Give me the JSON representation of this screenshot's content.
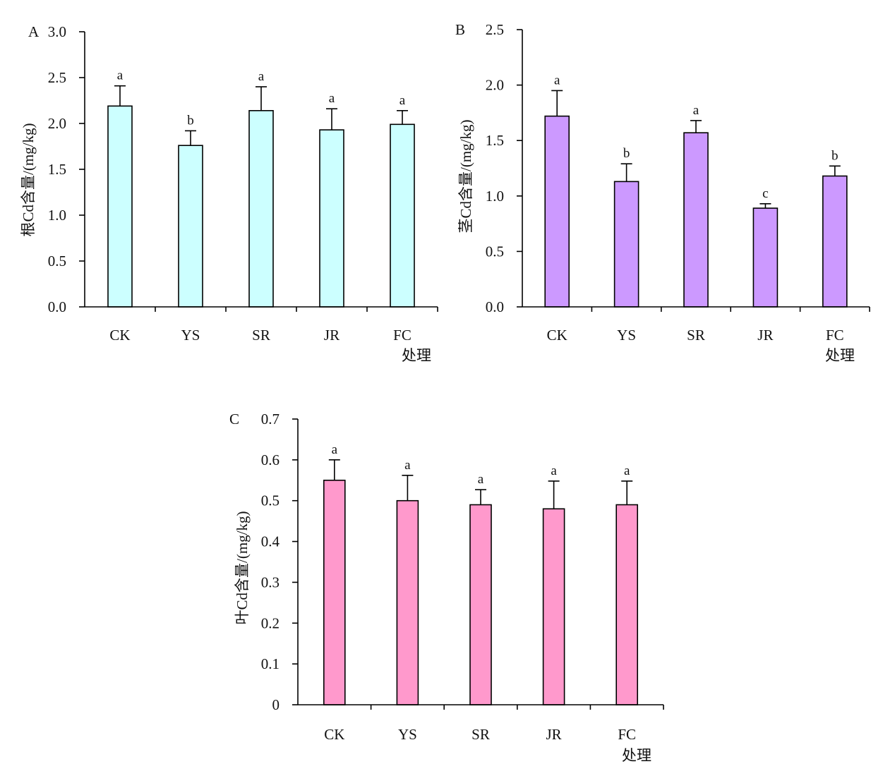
{
  "chart_data": [
    {
      "type": "bar",
      "panel": "A",
      "categories": [
        "CK",
        "YS",
        "SR",
        "JR",
        "FC"
      ],
      "values": [
        2.19,
        1.76,
        2.14,
        1.93,
        1.99
      ],
      "errors": [
        0.22,
        0.16,
        0.26,
        0.23,
        0.15
      ],
      "significance": [
        "a",
        "b",
        "a",
        "a",
        "a"
      ],
      "ylabel": "根Cd含量/(mg/kg)",
      "xlabel": "处理",
      "ylim": [
        0,
        3.0
      ],
      "yticks": [
        0.0,
        0.5,
        1.0,
        1.5,
        2.0,
        2.5,
        3.0
      ],
      "ytick_labels": [
        "0.0",
        "0.5",
        "1.0",
        "1.5",
        "2.0",
        "2.5",
        "3.0"
      ],
      "bar_color": "#ccffff",
      "grid": false
    },
    {
      "type": "bar",
      "panel": "B",
      "categories": [
        "CK",
        "YS",
        "SR",
        "JR",
        "FC"
      ],
      "values": [
        1.72,
        1.13,
        1.57,
        0.89,
        1.18
      ],
      "errors": [
        0.23,
        0.16,
        0.11,
        0.04,
        0.09
      ],
      "significance": [
        "a",
        "b",
        "a",
        "c",
        "b"
      ],
      "ylabel": "茎Cd含量/(mg/kg)",
      "xlabel": "处理",
      "ylim": [
        0,
        2.5
      ],
      "yticks": [
        0.0,
        0.5,
        1.0,
        1.5,
        2.0,
        2.5
      ],
      "ytick_labels": [
        "0.0",
        "0.5",
        "1.0",
        "1.5",
        "2.0",
        "2.5"
      ],
      "bar_color": "#cc99ff",
      "grid": false
    },
    {
      "type": "bar",
      "panel": "C",
      "categories": [
        "CK",
        "YS",
        "SR",
        "JR",
        "FC"
      ],
      "values": [
        0.55,
        0.5,
        0.49,
        0.48,
        0.49
      ],
      "errors": [
        0.05,
        0.062,
        0.037,
        0.068,
        0.058
      ],
      "significance": [
        "a",
        "a",
        "a",
        "a",
        "a"
      ],
      "ylabel": "叶Cd含量/(mg/kg)",
      "xlabel": "处理",
      "ylim": [
        0,
        0.7
      ],
      "yticks": [
        0,
        0.1,
        0.2,
        0.3,
        0.4,
        0.5,
        0.6,
        0.7
      ],
      "ytick_labels": [
        "0",
        "0.1",
        "0.2",
        "0.3",
        "0.4",
        "0.5",
        "0.6",
        "0.7"
      ],
      "bar_color": "#ff99cc",
      "grid": false
    }
  ]
}
